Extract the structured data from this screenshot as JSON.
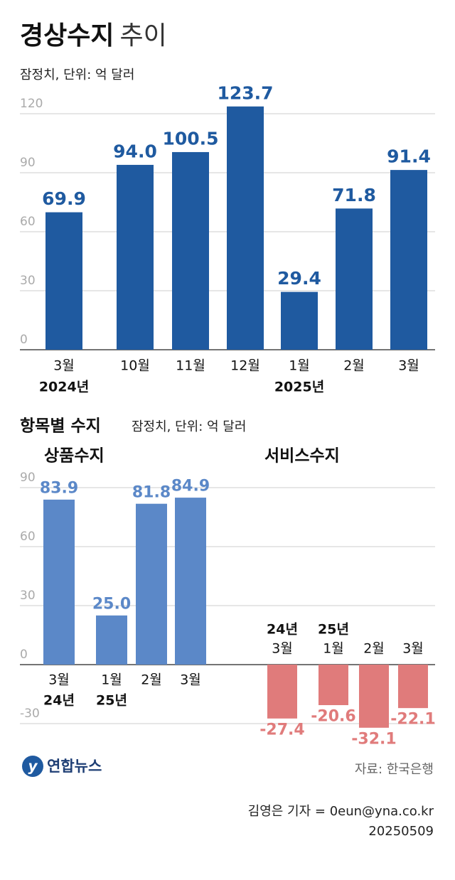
{
  "title": "경상수지",
  "title_light": "추이",
  "subtitle": "잠정치, 단위: 억 달러",
  "section_title": "항목별 수지",
  "section_subtitle": "잠정치, 단위: 억 달러",
  "logo": "연합뉴스",
  "source": "자료: 한국은행",
  "credit": "김영은 기자 = 0eun@yna.co.kr",
  "date": "20250509",
  "chart_data": [
    {
      "type": "bar",
      "categories": [
        "3월",
        "10월",
        "11월",
        "12월",
        "1월",
        "2월",
        "3월"
      ],
      "year_labels": [
        "2024년",
        null,
        null,
        null,
        "2025년",
        null,
        null
      ],
      "values": [
        69.9,
        94.0,
        100.5,
        123.7,
        29.4,
        71.8,
        91.4
      ],
      "value_labels": [
        "69.9",
        "94.0",
        "100.5",
        "123.7",
        "29.4",
        "71.8",
        "91.4"
      ],
      "color": "#1f5aa0",
      "ylim": [
        0,
        120
      ],
      "yticks": [
        0,
        30,
        60,
        90,
        120
      ],
      "grid": true
    },
    {
      "type": "bar",
      "title": "상품수지",
      "categories": [
        "3월",
        "1월",
        "2월",
        "3월"
      ],
      "year_labels": [
        "24년",
        "25년",
        null,
        null
      ],
      "values": [
        83.9,
        25.0,
        81.8,
        84.9
      ],
      "value_labels": [
        "83.9",
        "25.0",
        "81.8",
        "84.9"
      ],
      "color": "#5b88c8",
      "ylim": [
        -30,
        90
      ],
      "yticks": [
        -30,
        0,
        30,
        60,
        90
      ],
      "grid": true
    },
    {
      "type": "bar",
      "title": "서비스수지",
      "categories": [
        "3월",
        "1월",
        "2월",
        "3월"
      ],
      "year_labels": [
        "24년",
        "25년",
        null,
        null
      ],
      "values": [
        -27.4,
        -20.6,
        -32.1,
        -22.1
      ],
      "value_labels": [
        "-27.4",
        "-20.6",
        "-32.1",
        "-22.1"
      ],
      "color": "#e07b7b",
      "ylim": [
        -30,
        90
      ]
    }
  ]
}
